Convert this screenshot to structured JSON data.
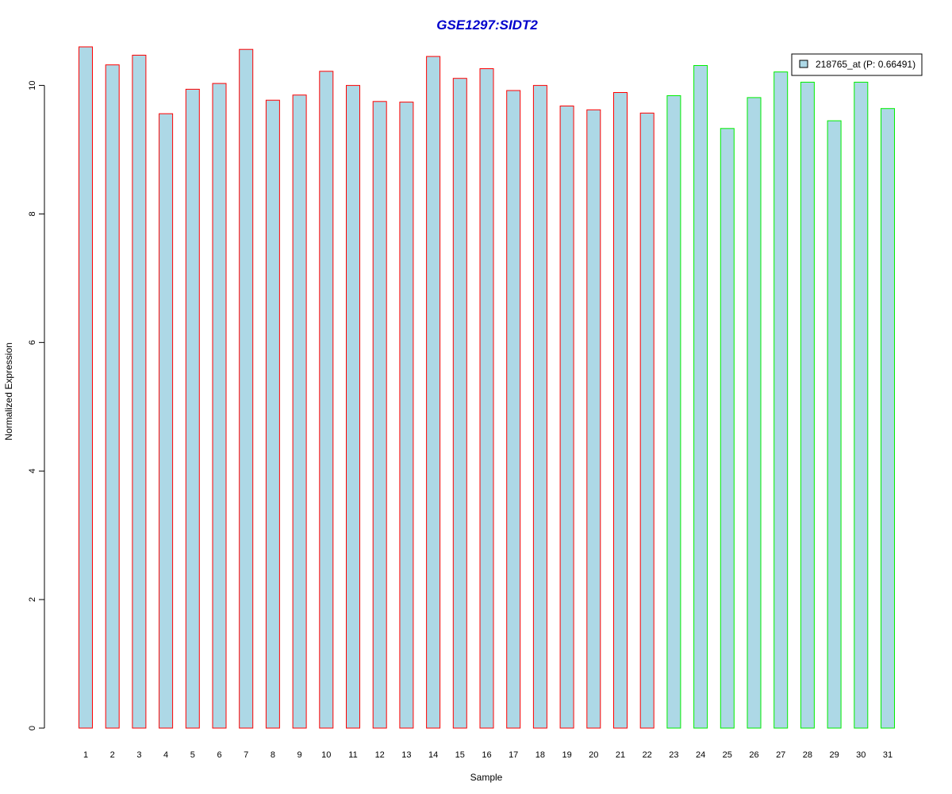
{
  "chart_data": {
    "type": "bar",
    "title": "GSE1297:SIDT2",
    "xlabel": "Sample",
    "ylabel": "Normalized Expression",
    "ylim": [
      0,
      10.6
    ],
    "yticks": [
      0,
      2,
      4,
      6,
      8,
      10
    ],
    "grid": false,
    "categories": [
      "1",
      "2",
      "3",
      "4",
      "5",
      "6",
      "7",
      "8",
      "9",
      "10",
      "11",
      "12",
      "13",
      "14",
      "15",
      "16",
      "17",
      "18",
      "19",
      "20",
      "21",
      "22",
      "23",
      "24",
      "25",
      "26",
      "27",
      "28",
      "29",
      "30",
      "31"
    ],
    "series": [
      {
        "name": "218765_at (P: 0.66491)",
        "values": [
          10.6,
          10.32,
          10.47,
          9.56,
          9.94,
          10.03,
          10.56,
          9.77,
          9.85,
          10.22,
          10.0,
          9.75,
          9.74,
          10.45,
          10.11,
          10.26,
          9.92,
          10.0,
          9.68,
          9.62,
          9.89,
          9.57,
          9.84,
          10.31,
          9.33,
          9.81,
          10.21,
          10.05,
          9.45,
          10.05,
          9.64
        ]
      }
    ],
    "groups": [
      {
        "samples": [
          1,
          22
        ],
        "border_color": "#ff0000"
      },
      {
        "samples": [
          23,
          31
        ],
        "border_color": "#00ee00"
      }
    ],
    "fill_color": "#add8e6",
    "title_color": "#0000cc",
    "legend_position": "top-right"
  }
}
